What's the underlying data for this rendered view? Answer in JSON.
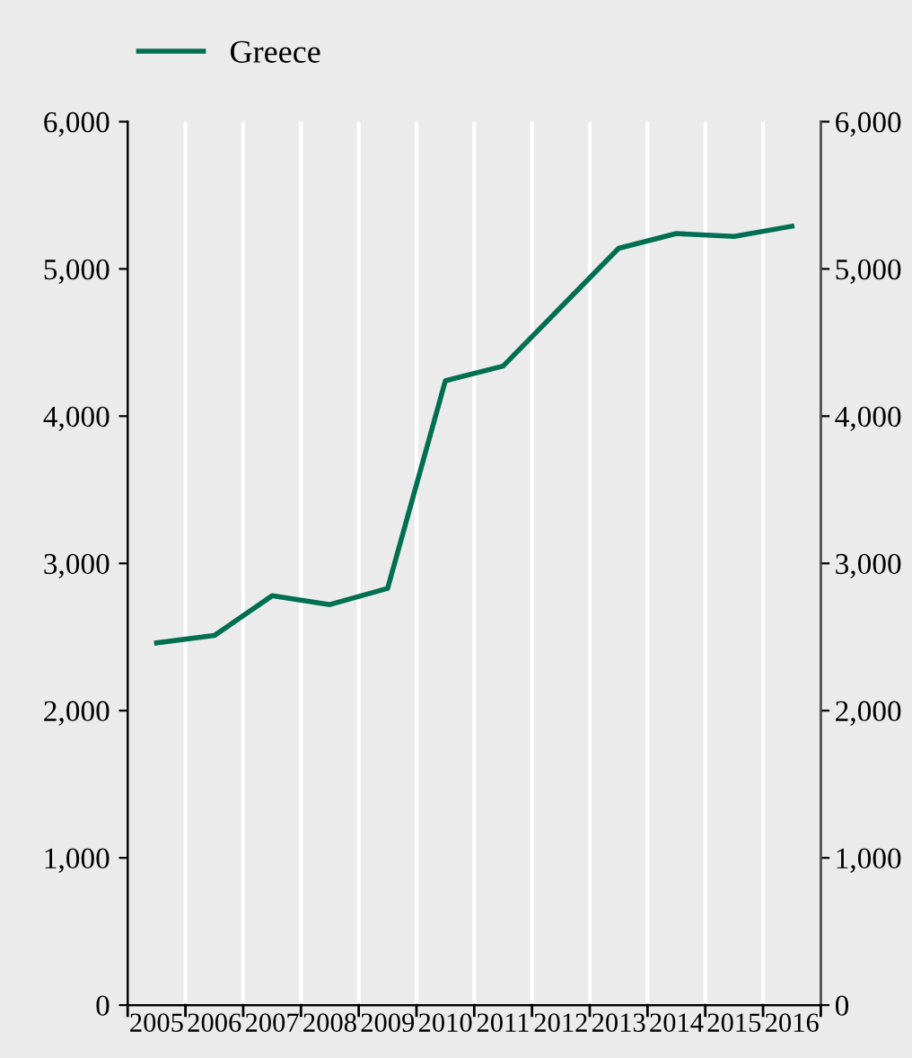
{
  "chart_data": {
    "type": "line",
    "categories": [
      "2005",
      "2006",
      "2007",
      "2008",
      "2009",
      "2010",
      "2011",
      "2012",
      "2013",
      "2014",
      "2015",
      "2016"
    ],
    "series": [
      {
        "name": "Greece",
        "color": "#006e51",
        "values": [
          2460,
          2510,
          2780,
          2720,
          2830,
          4240,
          4340,
          4740,
          5140,
          5240,
          5220,
          5290
        ]
      }
    ],
    "ylim": [
      0,
      6000
    ],
    "yticks": [
      {
        "value": 0,
        "label": "0"
      },
      {
        "value": 1000,
        "label": "1,000"
      },
      {
        "value": 2000,
        "label": "2,000"
      },
      {
        "value": 3000,
        "label": "3,000"
      },
      {
        "value": 4000,
        "label": "4,000"
      },
      {
        "value": 5000,
        "label": "5,000"
      },
      {
        "value": 6000,
        "label": "6,000"
      }
    ],
    "y2lim": [
      0,
      6000
    ],
    "y2ticks": [
      {
        "value": 0,
        "label": "0"
      },
      {
        "value": 1000,
        "label": "1,000"
      },
      {
        "value": 2000,
        "label": "2,000"
      },
      {
        "value": 3000,
        "label": "3,000"
      },
      {
        "value": 4000,
        "label": "4,000"
      },
      {
        "value": 5000,
        "label": "5,000"
      },
      {
        "value": 6000,
        "label": "6,000"
      }
    ],
    "grid": "x",
    "legend": "top left",
    "marker": "none",
    "line_style": "solid"
  }
}
